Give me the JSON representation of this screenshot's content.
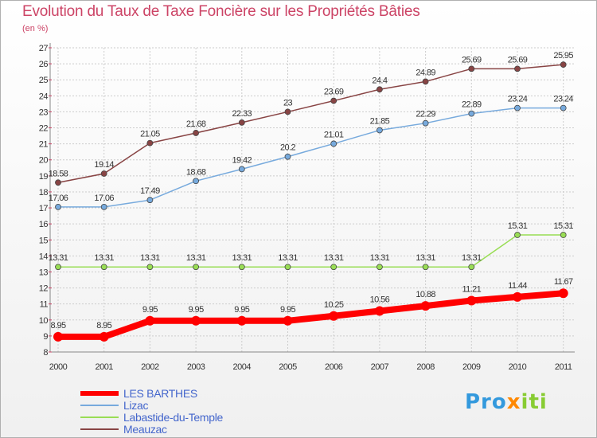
{
  "title": "Evolution du Taux de Taxe Foncière sur les Propriétés Bâties",
  "unit": "(en %)",
  "logo": {
    "parts": [
      "Pro",
      "x",
      "iti"
    ]
  },
  "colors": {
    "title": "#cc4466",
    "legend_text": "#4466cc",
    "grid": "#cccccc",
    "axis_text": "#333333"
  },
  "chart_data": {
    "type": "line",
    "x": [
      "2000",
      "2001",
      "2002",
      "2003",
      "2004",
      "2005",
      "2006",
      "2007",
      "2008",
      "2009",
      "2010",
      "2011"
    ],
    "ylim": [
      8,
      27
    ],
    "yticks": [
      8,
      9,
      10,
      11,
      12,
      13,
      14,
      15,
      16,
      17,
      18,
      19,
      20,
      21,
      22,
      23,
      24,
      25,
      26,
      27
    ],
    "grid": true,
    "legend_position": "bottom-left",
    "series": [
      {
        "name": "LES BARTHES",
        "color": "#ff0000",
        "values": [
          8.95,
          8.95,
          9.95,
          9.95,
          9.95,
          9.95,
          10.25,
          10.56,
          10.88,
          11.21,
          11.44,
          11.67
        ],
        "labels": [
          "8.95",
          "8.95",
          "9.95",
          "9.95",
          "9.95",
          "9.95",
          "10.25",
          "10.56",
          "10.88",
          "11.21",
          "11.44",
          "11.67"
        ]
      },
      {
        "name": "Lizac",
        "color": "#77aadd",
        "values": [
          17.06,
          17.06,
          17.49,
          18.68,
          19.42,
          20.2,
          21.01,
          21.85,
          22.29,
          22.89,
          23.24,
          23.24
        ],
        "labels": [
          "17.06",
          "17.06",
          "17.49",
          "18.68",
          "19.42",
          "20.2",
          "21.01",
          "21.85",
          "22.29",
          "22.89",
          "23.24",
          "23.24"
        ]
      },
      {
        "name": "Labastide-du-Temple",
        "color": "#99dd55",
        "values": [
          13.31,
          13.31,
          13.31,
          13.31,
          13.31,
          13.31,
          13.31,
          13.31,
          13.31,
          13.31,
          15.31,
          15.31
        ],
        "labels": [
          "13.31",
          "13.31",
          "13.31",
          "13.31",
          "13.31",
          "13.31",
          "13.31",
          "13.31",
          "13.31",
          "13.31",
          "15.31",
          "15.31"
        ]
      },
      {
        "name": "Meauzac",
        "color": "#884444",
        "values": [
          18.58,
          19.14,
          21.05,
          21.68,
          22.33,
          23,
          23.69,
          24.4,
          24.89,
          25.69,
          25.69,
          25.95
        ],
        "labels": [
          "18.58",
          "19.14",
          "21.05",
          "21.68",
          "22.33",
          "23",
          "23.69",
          "24.4",
          "24.89",
          "25.69",
          "25.69",
          "25.95"
        ]
      }
    ]
  }
}
